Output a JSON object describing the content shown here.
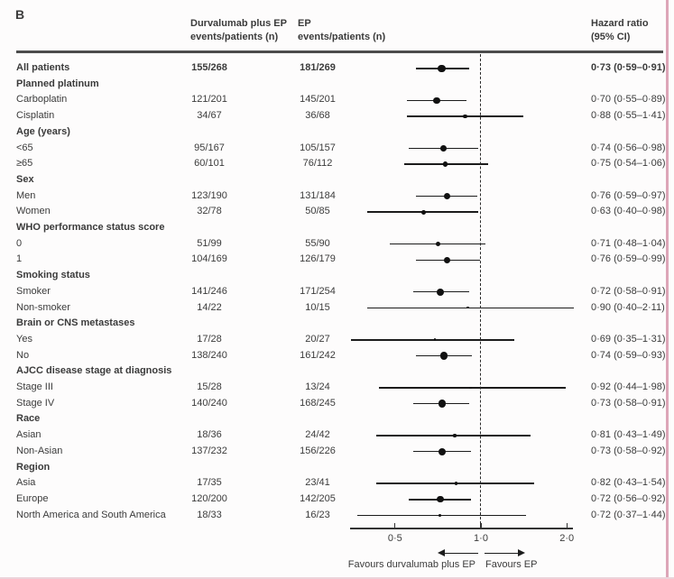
{
  "panel_label": "B",
  "columns": {
    "treatment_line1": "Durvalumab plus EP",
    "treatment_line2": "events/patients (n)",
    "ep_line1": "EP",
    "ep_line2": "events/patients (n)",
    "hr_line1": "Hazard ratio",
    "hr_line2": "(95% CI)"
  },
  "colors": {
    "text": "#3b3b3b",
    "marker": "#111111",
    "page_border_pink": "#dda6b8"
  },
  "chart_data": {
    "type": "forest",
    "x_scale": "log",
    "x_ticks": [
      0.5,
      1.0,
      2.0
    ],
    "x_tick_labels": [
      "0·5",
      "1·0",
      "2·0"
    ],
    "x_range": [
      0.35,
      2.25
    ],
    "reference_line": 1.0,
    "favours_left": "Favours durvalumab plus EP",
    "favours_right": "Favours EP",
    "rows": [
      {
        "type": "data",
        "bold": true,
        "label": "All patients",
        "durvalumab": "155/268",
        "ep": "181/269",
        "hr": 0.73,
        "ci_low": 0.59,
        "ci_high": 0.91,
        "hr_label": "0·73 (0·59–0·91)",
        "total_n": 537
      },
      {
        "type": "category",
        "label": "Planned platinum"
      },
      {
        "type": "data",
        "label": "Carboplatin",
        "durvalumab": "121/201",
        "ep": "145/201",
        "hr": 0.7,
        "ci_low": 0.55,
        "ci_high": 0.89,
        "hr_label": "0·70 (0·55–0·89)",
        "total_n": 402
      },
      {
        "type": "data",
        "label": "Cisplatin",
        "durvalumab": "34/67",
        "ep": "36/68",
        "hr": 0.88,
        "ci_low": 0.55,
        "ci_high": 1.41,
        "hr_label": "0·88 (0·55–1·41)",
        "total_n": 135
      },
      {
        "type": "category",
        "label": "Age (years)"
      },
      {
        "type": "data",
        "label": "<65",
        "durvalumab": "95/167",
        "ep": "105/157",
        "hr": 0.74,
        "ci_low": 0.56,
        "ci_high": 0.98,
        "hr_label": "0·74 (0·56–0·98)",
        "total_n": 324
      },
      {
        "type": "data",
        "label": "≥65",
        "durvalumab": "60/101",
        "ep": "76/112",
        "hr": 0.75,
        "ci_low": 0.54,
        "ci_high": 1.06,
        "hr_label": "0·75 (0·54–1·06)",
        "total_n": 213
      },
      {
        "type": "category",
        "label": "Sex"
      },
      {
        "type": "data",
        "label": "Men",
        "durvalumab": "123/190",
        "ep": "131/184",
        "hr": 0.76,
        "ci_low": 0.59,
        "ci_high": 0.97,
        "hr_label": "0·76 (0·59–0·97)",
        "total_n": 374
      },
      {
        "type": "data",
        "label": "Women",
        "durvalumab": "32/78",
        "ep": "50/85",
        "hr": 0.63,
        "ci_low": 0.4,
        "ci_high": 0.98,
        "hr_label": "0·63 (0·40–0·98)",
        "total_n": 163
      },
      {
        "type": "category",
        "label": "WHO performance status score"
      },
      {
        "type": "data",
        "label": "0",
        "durvalumab": "51/99",
        "ep": "55/90",
        "hr": 0.71,
        "ci_low": 0.48,
        "ci_high": 1.04,
        "hr_label": "0·71 (0·48–1·04)",
        "total_n": 189
      },
      {
        "type": "data",
        "label": "1",
        "durvalumab": "104/169",
        "ep": "126/179",
        "hr": 0.76,
        "ci_low": 0.59,
        "ci_high": 0.99,
        "hr_label": "0·76 (0·59–0·99)",
        "total_n": 348
      },
      {
        "type": "category",
        "label": "Smoking status"
      },
      {
        "type": "data",
        "label": "Smoker",
        "durvalumab": "141/246",
        "ep": "171/254",
        "hr": 0.72,
        "ci_low": 0.58,
        "ci_high": 0.91,
        "hr_label": "0·72 (0·58–0·91)",
        "total_n": 500
      },
      {
        "type": "data",
        "label": "Non-smoker",
        "durvalumab": "14/22",
        "ep": "10/15",
        "hr": 0.9,
        "ci_low": 0.4,
        "ci_high": 2.11,
        "hr_label": "0·90 (0·40–2·11)",
        "total_n": 37
      },
      {
        "type": "category",
        "label": "Brain or CNS metastases"
      },
      {
        "type": "data",
        "label": "Yes",
        "durvalumab": "17/28",
        "ep": "20/27",
        "hr": 0.69,
        "ci_low": 0.35,
        "ci_high": 1.31,
        "hr_label": "0·69 (0·35–1·31)",
        "total_n": 55
      },
      {
        "type": "data",
        "label": "No",
        "durvalumab": "138/240",
        "ep": "161/242",
        "hr": 0.74,
        "ci_low": 0.59,
        "ci_high": 0.93,
        "hr_label": "0·74 (0·59–0·93)",
        "total_n": 482
      },
      {
        "type": "category",
        "label": "AJCC disease stage at diagnosis"
      },
      {
        "type": "data",
        "label": "Stage III",
        "durvalumab": "15/28",
        "ep": "13/24",
        "hr": 0.92,
        "ci_low": 0.44,
        "ci_high": 1.98,
        "hr_label": "0·92 (0·44–1·98)",
        "total_n": 52
      },
      {
        "type": "data",
        "label": "Stage IV",
        "durvalumab": "140/240",
        "ep": "168/245",
        "hr": 0.73,
        "ci_low": 0.58,
        "ci_high": 0.91,
        "hr_label": "0·73 (0·58–0·91)",
        "total_n": 485
      },
      {
        "type": "category",
        "label": "Race"
      },
      {
        "type": "data",
        "label": "Asian",
        "durvalumab": "18/36",
        "ep": "24/42",
        "hr": 0.81,
        "ci_low": 0.43,
        "ci_high": 1.49,
        "hr_label": "0·81 (0·43–1·49)",
        "total_n": 78
      },
      {
        "type": "data",
        "label": "Non-Asian",
        "durvalumab": "137/232",
        "ep": "156/226",
        "hr": 0.73,
        "ci_low": 0.58,
        "ci_high": 0.92,
        "hr_label": "0·73 (0·58–0·92)",
        "total_n": 458
      },
      {
        "type": "category",
        "label": "Region"
      },
      {
        "type": "data",
        "label": "Asia",
        "durvalumab": "17/35",
        "ep": "23/41",
        "hr": 0.82,
        "ci_low": 0.43,
        "ci_high": 1.54,
        "hr_label": "0·82 (0·43–1·54)",
        "total_n": 76
      },
      {
        "type": "data",
        "label": "Europe",
        "durvalumab": "120/200",
        "ep": "142/205",
        "hr": 0.72,
        "ci_low": 0.56,
        "ci_high": 0.92,
        "hr_label": "0·72 (0·56–0·92)",
        "total_n": 405
      },
      {
        "type": "data",
        "label": "North America and South America",
        "durvalumab": "18/33",
        "ep": "16/23",
        "hr": 0.72,
        "ci_low": 0.37,
        "ci_high": 1.44,
        "hr_label": "0·72 (0·37–1·44)",
        "total_n": 56
      }
    ]
  }
}
